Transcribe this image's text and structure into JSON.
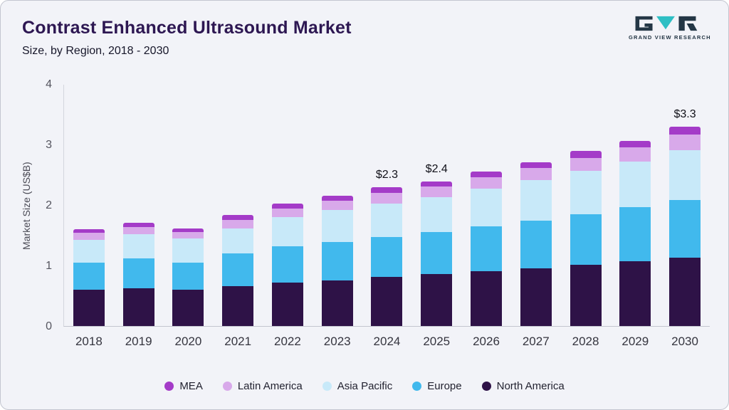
{
  "header": {
    "title": "Contrast Enhanced Ultrasound Market",
    "subtitle": "Size, by Region, 2018 - 2030",
    "logo_text": "GRAND VIEW RESEARCH"
  },
  "chart_data": {
    "type": "bar",
    "stacked": true,
    "title": "Contrast Enhanced Ultrasound Market Size, by Region, 2018 - 2030",
    "xlabel": "",
    "ylabel": "Market Size (US$B)",
    "ylim": [
      0,
      4
    ],
    "yticks": [
      0,
      1,
      2,
      3,
      4
    ],
    "grid": false,
    "legend_position": "bottom",
    "categories": [
      "2018",
      "2019",
      "2020",
      "2021",
      "2022",
      "2023",
      "2024",
      "2025",
      "2026",
      "2027",
      "2028",
      "2029",
      "2030"
    ],
    "series": [
      {
        "name": "North America",
        "color": "#2e1247",
        "values": [
          0.6,
          0.63,
          0.6,
          0.66,
          0.72,
          0.76,
          0.81,
          0.86,
          0.91,
          0.96,
          1.01,
          1.07,
          1.13
        ]
      },
      {
        "name": "Europe",
        "color": "#41b9ed",
        "values": [
          0.45,
          0.49,
          0.45,
          0.54,
          0.6,
          0.63,
          0.67,
          0.7,
          0.74,
          0.79,
          0.84,
          0.9,
          0.96
        ]
      },
      {
        "name": "Asia Pacific",
        "color": "#c8e9f9",
        "values": [
          0.38,
          0.4,
          0.4,
          0.42,
          0.48,
          0.53,
          0.55,
          0.58,
          0.63,
          0.67,
          0.72,
          0.76,
          0.83
        ]
      },
      {
        "name": "Latin America",
        "color": "#d8a9ea",
        "values": [
          0.12,
          0.12,
          0.11,
          0.14,
          0.15,
          0.16,
          0.18,
          0.17,
          0.19,
          0.2,
          0.22,
          0.23,
          0.25
        ]
      },
      {
        "name": "MEA",
        "color": "#a43bc8",
        "values": [
          0.06,
          0.07,
          0.06,
          0.08,
          0.08,
          0.08,
          0.09,
          0.09,
          0.09,
          0.1,
          0.11,
          0.11,
          0.13
        ]
      }
    ],
    "annotations": [
      {
        "category": "2024",
        "text": "$2.3"
      },
      {
        "category": "2025",
        "text": "$2.4"
      },
      {
        "category": "2030",
        "text": "$3.3"
      }
    ],
    "legend": [
      "MEA",
      "Latin America",
      "Asia Pacific",
      "Europe",
      "North America"
    ]
  }
}
